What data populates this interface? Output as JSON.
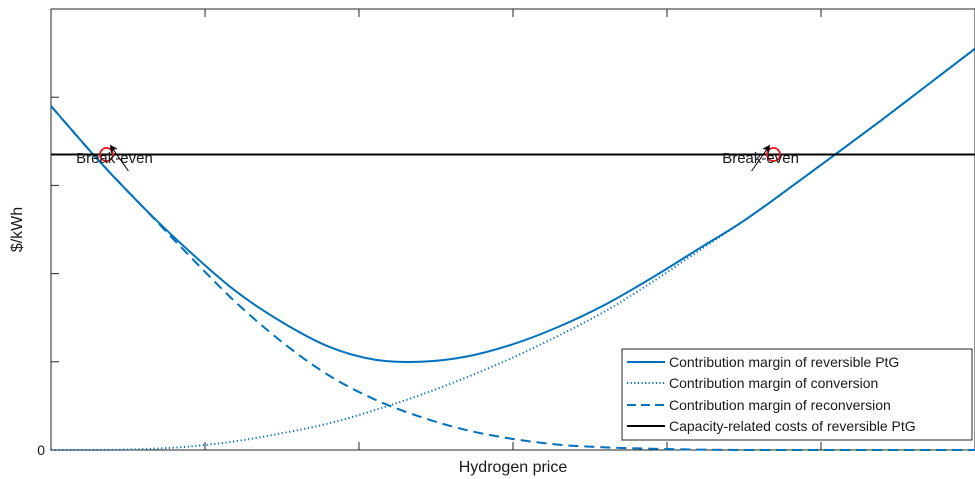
{
  "chart_data": {
    "type": "line",
    "title": "",
    "xlabel": "Hydrogen price",
    "ylabel": "$/kWh",
    "xlim": [
      0,
      1
    ],
    "ylim": [
      0,
      1
    ],
    "y_tick_labels": [
      "0"
    ],
    "grid": false,
    "legend_position": "bottom-right",
    "series": [
      {
        "name": "Contribution margin of reversible PtG",
        "style": "solid",
        "color": "#0072BD",
        "x": [
          0,
          0.05,
          0.1,
          0.15,
          0.2,
          0.25,
          0.3,
          0.35,
          0.4,
          0.45,
          0.5,
          0.55,
          0.6,
          0.65,
          0.7,
          0.75,
          0.8,
          0.85,
          0.9,
          0.95,
          1.0
        ],
        "y": [
          0.78,
          0.66,
          0.55,
          0.45,
          0.36,
          0.29,
          0.235,
          0.205,
          0.2,
          0.212,
          0.24,
          0.28,
          0.33,
          0.39,
          0.455,
          0.52,
          0.595,
          0.672,
          0.75,
          0.83,
          0.91
        ]
      },
      {
        "name": "Contribution margin of conversion",
        "style": "dotted",
        "color": "#0072BD",
        "x": [
          0,
          0.05,
          0.1,
          0.15,
          0.2,
          0.25,
          0.3,
          0.35,
          0.4,
          0.45,
          0.5,
          0.55,
          0.6,
          0.65,
          0.7,
          0.75,
          0.8,
          0.85,
          0.9,
          0.95,
          1.0
        ],
        "y": [
          0.0,
          0.0,
          0.002,
          0.008,
          0.02,
          0.038,
          0.06,
          0.09,
          0.125,
          0.165,
          0.21,
          0.26,
          0.315,
          0.38,
          0.45,
          0.52,
          0.595,
          0.672,
          0.75,
          0.83,
          0.91
        ]
      },
      {
        "name": "Contribution margin of reconversion",
        "style": "dashed",
        "color": "#0072BD",
        "x": [
          0,
          0.05,
          0.1,
          0.15,
          0.2,
          0.25,
          0.3,
          0.35,
          0.4,
          0.45,
          0.5,
          0.55,
          0.6,
          0.65,
          0.7,
          0.75,
          0.8,
          0.85,
          0.9,
          0.95,
          1.0
        ],
        "y": [
          0.78,
          0.66,
          0.55,
          0.44,
          0.335,
          0.245,
          0.17,
          0.115,
          0.075,
          0.045,
          0.025,
          0.012,
          0.006,
          0.003,
          0.001,
          0.0,
          0.0,
          0.0,
          0.0,
          0.0,
          0.0
        ]
      },
      {
        "name": "Capacity-related costs of reversible PtG",
        "style": "solid",
        "color": "#000000",
        "x": [
          0,
          1.0
        ],
        "y": [
          0.67,
          0.67
        ]
      }
    ],
    "annotations": [
      {
        "text": "Break-even",
        "x": 0.06,
        "y": 0.67
      },
      {
        "text": "Break-even",
        "x": 0.782,
        "y": 0.67
      }
    ]
  }
}
